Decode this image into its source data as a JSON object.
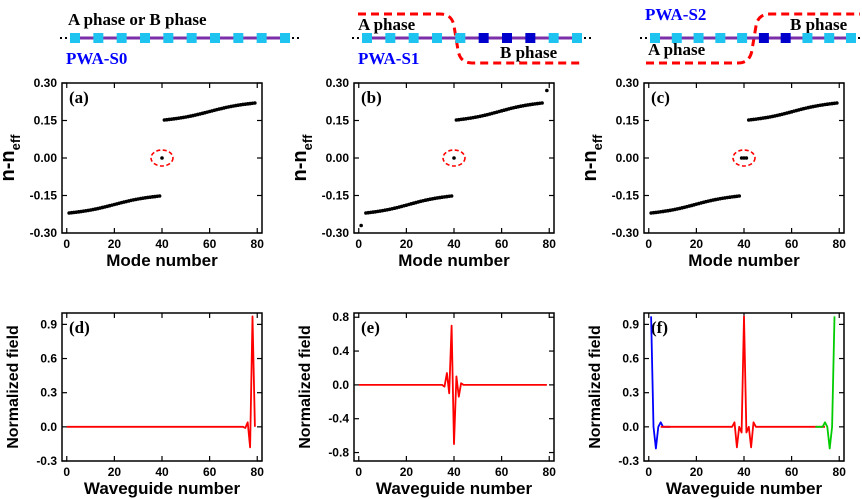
{
  "schematics": [
    {
      "structure_label": "PWA-S0",
      "phase_label": "A phase or B phase",
      "phase_label_2": ""
    },
    {
      "structure_label": "PWA-S1",
      "phase_label": "A phase",
      "phase_label_2": "B phase"
    },
    {
      "structure_label": "PWA-S2",
      "phase_label": "A phase",
      "phase_label_2": "B phase"
    }
  ],
  "chart_data": [
    {
      "type": "scatter",
      "panel": "(a)",
      "xlabel": "Mode number",
      "ylabel": "n-n",
      "ylabel_sub": "eff",
      "xlim": [
        -2,
        82
      ],
      "ylim": [
        -0.3,
        0.3
      ],
      "xticks": [
        "0",
        "20",
        "40",
        "60",
        "80"
      ],
      "yticks": [
        "-0.30",
        "-0.15",
        "0.00",
        "0.15",
        "0.30"
      ],
      "series": [
        {
          "x_range": [
            1,
            39
          ],
          "y_range": [
            -0.22,
            -0.152
          ]
        },
        {
          "x_range": [
            41,
            79
          ],
          "y_range": [
            0.152,
            0.22
          ]
        },
        {
          "x": [
            40
          ],
          "y": [
            0.0
          ]
        }
      ],
      "annotations": [
        "red dashed ellipse around the mode at n-n_eff = 0"
      ]
    },
    {
      "type": "scatter",
      "panel": "(b)",
      "xlabel": "Mode number",
      "ylabel": "n-n",
      "ylabel_sub": "eff",
      "xlim": [
        -2,
        82
      ],
      "ylim": [
        -0.3,
        0.3
      ],
      "xticks": [
        "0",
        "20",
        "40",
        "60",
        "80"
      ],
      "yticks": [
        "-0.30",
        "-0.15",
        "0.00",
        "0.15",
        "0.30"
      ],
      "series": [
        {
          "x_range": [
            3,
            39
          ],
          "y_range": [
            -0.22,
            -0.152
          ]
        },
        {
          "x_range": [
            41,
            77
          ],
          "y_range": [
            0.152,
            0.22
          ]
        },
        {
          "x": [
            1,
            40,
            79
          ],
          "y": [
            -0.27,
            0.0,
            0.27
          ]
        }
      ],
      "annotations": [
        "red dashed ellipse around the mode at n-n_eff = 0"
      ]
    },
    {
      "type": "scatter",
      "panel": "(c)",
      "xlabel": "Mode number",
      "ylabel": "n-n",
      "ylabel_sub": "eff",
      "xlim": [
        -2,
        82
      ],
      "ylim": [
        -0.3,
        0.3
      ],
      "xticks": [
        "0",
        "20",
        "40",
        "60",
        "80"
      ],
      "yticks": [
        "-0.30",
        "-0.15",
        "0.00",
        "0.15",
        "0.30"
      ],
      "series": [
        {
          "x_range": [
            1,
            38
          ],
          "y_range": [
            -0.22,
            -0.152
          ]
        },
        {
          "x_range": [
            42,
            79
          ],
          "y_range": [
            0.152,
            0.22
          ]
        },
        {
          "x": [
            39,
            40,
            41
          ],
          "y": [
            0.0,
            0.0,
            0.0
          ]
        }
      ],
      "annotations": [
        "red dashed ellipse around the modes at n-n_eff = 0"
      ]
    },
    {
      "type": "line",
      "panel": "(d)",
      "xlabel": "Waveguide number",
      "ylabel": "Normalized field",
      "xlim": [
        -2,
        82
      ],
      "ylim": [
        -0.3,
        1.0
      ],
      "xticks": [
        "0",
        "20",
        "40",
        "60",
        "80"
      ],
      "yticks": [
        "-0.3",
        "0.0",
        "0.3",
        "0.6",
        "0.9"
      ],
      "series": [
        {
          "color": "#ff0000",
          "x": [
            0,
            74,
            75,
            76,
            77,
            78,
            79
          ],
          "y": [
            0.0,
            0.0,
            -0.01,
            0.04,
            -0.18,
            0.97,
            0.0
          ]
        }
      ]
    },
    {
      "type": "line",
      "panel": "(e)",
      "xlabel": "Waveguide number",
      "ylabel": "Normalized field",
      "xlim": [
        -2,
        82
      ],
      "ylim": [
        -0.9,
        0.85
      ],
      "xticks": [
        "0",
        "20",
        "40",
        "60",
        "80"
      ],
      "yticks": [
        "-0.8",
        "-0.4",
        "0.0",
        "0.4",
        "0.8"
      ],
      "series": [
        {
          "color": "#ff0000",
          "x": [
            0,
            35,
            36,
            37,
            38,
            39,
            40,
            41,
            42,
            43,
            44,
            45,
            79
          ],
          "y": [
            0.0,
            0.0,
            -0.02,
            0.14,
            -0.1,
            0.7,
            -0.7,
            0.1,
            -0.14,
            0.02,
            0.0,
            0.0,
            0.0
          ]
        }
      ]
    },
    {
      "type": "line",
      "panel": "(f)",
      "xlabel": "Waveguide number",
      "ylabel": "Normalized field",
      "xlim": [
        -2,
        82
      ],
      "ylim": [
        -0.3,
        1.0
      ],
      "xticks": [
        "0",
        "20",
        "40",
        "60",
        "80"
      ],
      "yticks": [
        "-0.3",
        "0.0",
        "0.3",
        "0.6",
        "0.9"
      ],
      "series": [
        {
          "color": "#0000ff",
          "x": [
            1,
            2,
            3,
            4,
            5,
            6,
            9
          ],
          "y": [
            0.97,
            0.0,
            -0.19,
            0.0,
            0.04,
            0.0,
            0.0
          ]
        },
        {
          "color": "#ff0000",
          "x": [
            5,
            35,
            36,
            37,
            38,
            39,
            40,
            41,
            42,
            43,
            44,
            45,
            74
          ],
          "y": [
            0.0,
            0.0,
            0.04,
            -0.18,
            0.0,
            -0.05,
            0.97,
            -0.05,
            0.0,
            -0.18,
            0.04,
            0.0,
            0.0
          ]
        },
        {
          "color": "#00cc00",
          "x": [
            70,
            73,
            74,
            75,
            76,
            77,
            78
          ],
          "y": [
            0.0,
            0.0,
            0.04,
            0.0,
            -0.19,
            0.0,
            0.97
          ]
        }
      ]
    }
  ]
}
